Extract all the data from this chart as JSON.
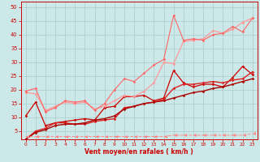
{
  "xlabel": "Vent moyen/en rafales ( km/h )",
  "xlim": [
    -0.5,
    23.5
  ],
  "ylim": [
    2,
    52
  ],
  "yticks": [
    5,
    10,
    15,
    20,
    25,
    30,
    35,
    40,
    45,
    50
  ],
  "xticks": [
    0,
    1,
    2,
    3,
    4,
    5,
    6,
    7,
    8,
    9,
    10,
    11,
    12,
    13,
    14,
    15,
    16,
    17,
    18,
    19,
    20,
    21,
    22,
    23
  ],
  "bg_color": "#cce8e8",
  "grid_color": "#aacccc",
  "lines": [
    {
      "x": [
        0,
        1,
        2,
        3,
        4,
        5,
        6,
        7,
        8,
        9,
        10,
        11,
        12,
        13,
        14,
        15,
        16,
        17,
        18,
        19,
        20,
        21,
        22,
        23
      ],
      "y": [
        10.5,
        15.5,
        7.0,
        8.0,
        8.5,
        9.0,
        9.5,
        9.0,
        13.5,
        14.0,
        17.5,
        17.5,
        18.0,
        16.0,
        17.0,
        27.0,
        22.5,
        21.0,
        22.0,
        22.0,
        21.0,
        24.5,
        28.5,
        25.5
      ],
      "color": "#cc0000",
      "lw": 0.9,
      "marker": "D",
      "ms": 1.8
    },
    {
      "x": [
        0,
        1,
        2,
        3,
        4,
        5,
        6,
        7,
        8,
        9,
        10,
        11,
        12,
        13,
        14,
        15,
        16,
        17,
        18,
        19,
        20,
        21,
        22,
        23
      ],
      "y": [
        19.0,
        18.5,
        12.5,
        14.0,
        15.5,
        15.0,
        15.5,
        13.0,
        14.0,
        16.0,
        18.0,
        17.5,
        19.5,
        22.5,
        30.0,
        29.5,
        37.5,
        38.0,
        38.5,
        41.5,
        40.5,
        42.0,
        44.5,
        46.0
      ],
      "color": "#ff9999",
      "lw": 0.9,
      "marker": "D",
      "ms": 1.8
    },
    {
      "x": [
        0,
        1,
        2,
        3,
        4,
        5,
        6,
        7,
        8,
        9,
        10,
        11,
        12,
        13,
        14,
        15,
        16,
        17,
        18,
        19,
        20,
        21,
        22,
        23
      ],
      "y": [
        19.5,
        20.5,
        12.0,
        13.5,
        16.0,
        15.5,
        16.0,
        12.5,
        15.0,
        20.0,
        24.0,
        23.0,
        26.0,
        29.0,
        31.0,
        47.0,
        38.0,
        38.5,
        38.0,
        40.0,
        40.5,
        43.0,
        41.0,
        46.0
      ],
      "color": "#ff6666",
      "lw": 0.8,
      "marker": "D",
      "ms": 1.8
    },
    {
      "x": [
        0,
        1,
        2,
        3,
        4,
        5,
        6,
        7,
        8,
        9,
        10,
        11,
        12,
        13,
        14,
        15,
        16,
        17,
        18,
        19,
        20,
        21,
        22,
        23
      ],
      "y": [
        2.0,
        5.0,
        6.0,
        8.0,
        8.0,
        7.5,
        7.5,
        8.5,
        9.0,
        9.5,
        13.5,
        14.0,
        15.0,
        15.5,
        16.5,
        20.5,
        22.0,
        22.0,
        22.5,
        23.0,
        22.5,
        23.5,
        24.0,
        26.5
      ],
      "color": "#dd2222",
      "lw": 1.0,
      "marker": "D",
      "ms": 1.8
    },
    {
      "x": [
        0,
        1,
        2,
        3,
        4,
        5,
        6,
        7,
        8,
        9,
        10,
        11,
        12,
        13,
        14,
        15,
        16,
        17,
        18,
        19,
        20,
        21,
        22,
        23
      ],
      "y": [
        2.0,
        4.5,
        5.5,
        7.0,
        7.5,
        7.5,
        8.0,
        9.0,
        9.5,
        10.5,
        13.0,
        14.0,
        15.0,
        15.5,
        16.0,
        17.0,
        18.0,
        19.0,
        19.5,
        20.5,
        21.0,
        22.0,
        23.0,
        24.0
      ],
      "color": "#aa0000",
      "lw": 1.0,
      "marker": "D",
      "ms": 1.8
    },
    {
      "x": [
        0,
        1,
        2,
        3,
        4,
        5,
        6,
        7,
        8,
        9,
        10,
        11,
        12,
        13,
        14,
        15,
        16,
        17,
        18,
        19,
        20,
        21,
        22,
        23
      ],
      "y": [
        3.0,
        3.0,
        3.0,
        3.0,
        3.0,
        3.0,
        3.0,
        3.0,
        3.0,
        3.0,
        3.0,
        3.0,
        3.0,
        3.0,
        3.0,
        3.5,
        3.5,
        3.5,
        3.5,
        3.5,
        3.5,
        3.5,
        3.5,
        4.0
      ],
      "color": "#ff8888",
      "lw": 0.7,
      "marker": 4,
      "ms": 3.5,
      "linestyle": "--"
    }
  ]
}
